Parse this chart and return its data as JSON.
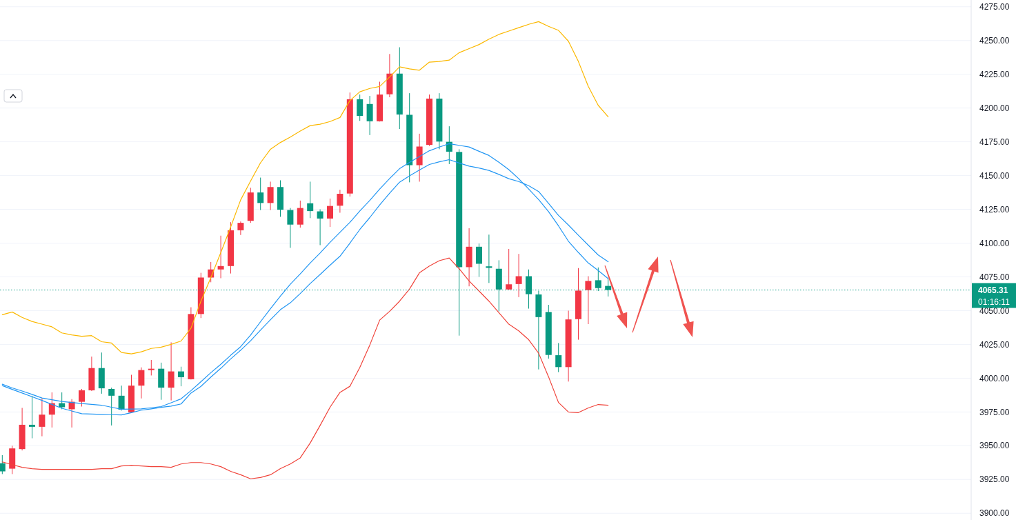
{
  "chart_data": {
    "type": "candlestick",
    "categories": [
      null,
      null,
      null,
      null,
      null,
      null,
      null,
      null,
      null,
      null,
      null,
      null,
      null,
      null,
      null,
      null,
      null,
      null,
      null,
      null,
      null,
      null,
      null,
      null,
      null,
      null,
      null,
      null,
      null,
      null,
      null,
      null,
      null,
      null,
      null,
      null,
      null,
      null,
      null,
      null,
      null,
      null,
      null,
      null,
      null,
      null,
      null,
      null,
      null,
      null,
      null,
      null,
      null,
      null,
      null,
      null,
      null,
      null,
      null,
      null,
      null,
      null
    ],
    "ohlc": [
      [
        3937,
        3943,
        3929,
        3931
      ],
      [
        3933,
        3950,
        3929,
        3948
      ],
      [
        3947.5,
        3978,
        3946.5,
        3965.5
      ],
      [
        3965.5,
        3987,
        3955.5,
        3964
      ],
      [
        3964,
        3985,
        3957,
        3973
      ],
      [
        3973,
        3989.5,
        3963.5,
        3981.5
      ],
      [
        3981.5,
        3989.5,
        3977,
        3978.5
      ],
      [
        3977,
        3984.5,
        3963.5,
        3982.5
      ],
      [
        3982.5,
        3992,
        3979,
        3991
      ],
      [
        3991,
        4016,
        3990.5,
        4007.5
      ],
      [
        4007.5,
        4019,
        3988.5,
        3992.5
      ],
      [
        3992,
        3993,
        3965,
        3987
      ],
      [
        3987,
        3994.5,
        3976,
        3976.7
      ],
      [
        3974.7,
        4002.5,
        3974.5,
        3994.5
      ],
      [
        3994.5,
        4008,
        3985,
        4006
      ],
      [
        4006,
        4013.5,
        4002,
        4007
      ],
      [
        4007,
        4011.5,
        3984,
        3993
      ],
      [
        3993,
        4026.5,
        3983.5,
        4005
      ],
      [
        4005,
        4008.5,
        3994,
        4000.7
      ],
      [
        3999.2,
        4052.5,
        3999,
        4047.5
      ],
      [
        4047.5,
        4078,
        4044.5,
        4074.5
      ],
      [
        4074.5,
        4086,
        4071,
        4080.5
      ],
      [
        4080.5,
        4105.5,
        4074,
        4083
      ],
      [
        4083,
        4115.5,
        4077.5,
        4109.5
      ],
      [
        4109.5,
        4116,
        4106,
        4115
      ],
      [
        4116.5,
        4141,
        4115,
        4137.5
      ],
      [
        4137.5,
        4148.5,
        4124.5,
        4129.7
      ],
      [
        4129.7,
        4145.5,
        4124.5,
        4141.5
      ],
      [
        4141.5,
        4146.5,
        4119.5,
        4124.7
      ],
      [
        4124.5,
        4126,
        4096.5,
        4113.7
      ],
      [
        4113.7,
        4131.5,
        4111.5,
        4126
      ],
      [
        4129.5,
        4145.5,
        4118.5,
        4123.7
      ],
      [
        4123.5,
        4125,
        4098.5,
        4118.2
      ],
      [
        4118.2,
        4133,
        4112,
        4127.5
      ],
      [
        4127.7,
        4139.5,
        4122.5,
        4136.5
      ],
      [
        4136.7,
        4211.5,
        4134.5,
        4206.5
      ],
      [
        4206.5,
        4210,
        4190.5,
        4194.2
      ],
      [
        4203,
        4209,
        4180,
        4190.2
      ],
      [
        4190.2,
        4219.5,
        4190,
        4210
      ],
      [
        4210.2,
        4240,
        4208,
        4225.5
      ],
      [
        4225.5,
        4245,
        4184.5,
        4195.2
      ],
      [
        4195,
        4211,
        4145,
        4157.7
      ],
      [
        4157.7,
        4181,
        4145.5,
        4171.5
      ],
      [
        4172.7,
        4210,
        4172,
        4207
      ],
      [
        4207,
        4211,
        4169.5,
        4175.2
      ],
      [
        4175,
        4186.5,
        4158.5,
        4167.7
      ],
      [
        4167.5,
        4169.5,
        4031.5,
        4082.2
      ],
      [
        4082.2,
        4111,
        4068,
        4097.3
      ],
      [
        4097.3,
        4099.7,
        4075,
        4084.7
      ],
      [
        4082.8,
        4106.3,
        4070.5,
        4081.7
      ],
      [
        4081,
        4087.3,
        4049.5,
        4065.7
      ],
      [
        4065.7,
        4095.7,
        4065.5,
        4069.5
      ],
      [
        4069.7,
        4092,
        4060,
        4075.5
      ],
      [
        4075.5,
        4080.5,
        4051.5,
        4062.2
      ],
      [
        4062,
        4064.7,
        4006.5,
        4045.2
      ],
      [
        4049,
        4054.3,
        4014.5,
        4017.2
      ],
      [
        4017,
        4026,
        4004.5,
        4008.2
      ],
      [
        4008.2,
        4050,
        3997.5,
        4043.5
      ],
      [
        4043.7,
        4081.5,
        4028.5,
        4064.8
      ],
      [
        4065.2,
        4075.5,
        4040,
        4072
      ],
      [
        4072.5,
        4082,
        4064.5,
        4066.7
      ],
      [
        4068.3,
        4073.7,
        4060.5,
        4065.31
      ]
    ],
    "colors": [
      "#089981",
      "#f23645",
      "#f23645",
      "#089981",
      "#f23645",
      "#f23645",
      "#089981",
      "#f23645",
      "#f23645",
      "#f23645",
      "#089981",
      "#089981",
      "#089981",
      "#f23645",
      "#f23645",
      "#f23645",
      "#089981",
      "#f23645",
      "#089981",
      "#f23645",
      "#f23645",
      "#f23645",
      "#f23645",
      "#f23645",
      "#f23645",
      "#f23645",
      "#089981",
      "#f23645",
      "#089981",
      "#089981",
      "#f23645",
      "#089981",
      "#089981",
      "#f23645",
      "#f23645",
      "#f23645",
      "#089981",
      "#089981",
      "#f23645",
      "#f23645",
      "#089981",
      "#089981",
      "#f23645",
      "#f23645",
      "#089981",
      "#089981",
      "#089981",
      "#f23645",
      "#089981",
      "#089981",
      "#089981",
      "#f23645",
      "#f23645",
      "#089981",
      "#089981",
      "#089981",
      "#089981",
      "#f23645",
      "#f23645",
      "#f23645",
      "#089981",
      "#089981"
    ],
    "series": [
      {
        "type": "line",
        "color": "#fbb800",
        "values": [
          4047,
          4049,
          4045,
          4042,
          4040,
          4038,
          4033.5,
          4032,
          4031,
          4031.5,
          4027,
          4026,
          4019,
          4018,
          4019.5,
          4022,
          4023,
          4025,
          4027.5,
          4037,
          4057,
          4074.5,
          4093,
          4112,
          4132,
          4146,
          4159.5,
          4169.5,
          4174.5,
          4178.5,
          4183,
          4187,
          4188,
          4190,
          4193,
          4205.5,
          4212,
          4214.5,
          4216,
          4223,
          4230.5,
          4229,
          4228,
          4234,
          4234.5,
          4235.5,
          4241,
          4244,
          4247,
          4251,
          4254.5,
          4257,
          4259.5,
          4262,
          4264,
          4260.5,
          4257.5,
          4249.5,
          4234.5,
          4216,
          4202,
          4193.5
        ]
      },
      {
        "type": "line",
        "color": "#2196f3",
        "values": [
          3995.5,
          3992.8,
          3990.5,
          3988,
          3985.3,
          3984,
          3982.8,
          3982,
          3981.2,
          3980.6,
          3980,
          3978.5,
          3977,
          3977.1,
          3977.3,
          3978.1,
          3979,
          3981.8,
          3984.7,
          3990.8,
          3997.4,
          4004.1,
          4010.3,
          4017,
          4023.3,
          4031.9,
          4041.8,
          4051.4,
          4060.7,
          4069.6,
          4077.2,
          4085.3,
          4092.7,
          4100.6,
          4108,
          4115.4,
          4123.8,
          4131.6,
          4140,
          4147.8,
          4155.1,
          4159.8,
          4164.1,
          4168.4,
          4171.1,
          4173.6,
          4172.4,
          4171.2,
          4168,
          4164.9,
          4159.9,
          4154.4,
          4147.7,
          4140,
          4132.2,
          4123.3,
          4112.8,
          4101.4,
          4093.1,
          4085.3,
          4079.7,
          4073.7
        ]
      },
      {
        "type": "line",
        "color": "#2196f3",
        "values": [
          3994.5,
          3991.7,
          3989,
          3986.3,
          3983.5,
          3980.6,
          3977.7,
          3975.7,
          3973.7,
          3973.4,
          3973.2,
          3973,
          3972.8,
          3974.5,
          3976.3,
          3977.3,
          3978.4,
          3979.3,
          3980.9,
          3989,
          3993.9,
          4000.8,
          4007.3,
          4014.3,
          4020.7,
          4027.7,
          4035.6,
          4043.3,
          4050.7,
          4055.8,
          4062.7,
          4070.1,
          4076.8,
          4083.7,
          4090.3,
          4100,
          4110.1,
          4118.9,
          4128.3,
          4137,
          4145.1,
          4149.8,
          4154.1,
          4158.2,
          4160.2,
          4161.8,
          4159.3,
          4157,
          4155.6,
          4153.8,
          4150.9,
          4147.7,
          4145.6,
          4142.5,
          4138.2,
          4129.4,
          4120.5,
          4113.4,
          4105.8,
          4098.5,
          4091.2,
          4086.2
        ]
      },
      {
        "type": "line",
        "color": "#f0433a",
        "values": [
          3938,
          3936,
          3934,
          3933,
          3932.5,
          3932.5,
          3932.5,
          3932.5,
          3932.5,
          3932.5,
          3933,
          3933,
          3935,
          3935.5,
          3935,
          3934.5,
          3934.5,
          3934,
          3936.5,
          3937.5,
          3937.5,
          3936.5,
          3934.5,
          3931,
          3928.5,
          3925.5,
          3926.5,
          3928.5,
          3933,
          3936.5,
          3941,
          3952,
          3965,
          3978.5,
          3989.5,
          3994,
          4008,
          4024.5,
          4043,
          4049.5,
          4057,
          4066,
          4078,
          4083,
          4087,
          4089,
          4081,
          4072,
          4064.5,
          4057,
          4048.5,
          4040,
          4035,
          4028.5,
          4018.5,
          4001,
          3982,
          3975,
          3974.5,
          3978,
          3980.5,
          3980
        ]
      }
    ],
    "ylim": [
      3895,
      4280
    ],
    "yticks": [
      {
        "value": 3900,
        "label": "3900.00"
      },
      {
        "value": 3925,
        "label": "3925.00"
      },
      {
        "value": 3950,
        "label": "3950.00"
      },
      {
        "value": 3975,
        "label": "3975.00"
      },
      {
        "value": 4000,
        "label": "4000.00"
      },
      {
        "value": 4025,
        "label": "4025.00"
      },
      {
        "value": 4050,
        "label": "4050.00"
      },
      {
        "value": 4075,
        "label": "4075.00"
      },
      {
        "value": 4100,
        "label": "4100.00"
      },
      {
        "value": 4125,
        "label": "4125.00"
      },
      {
        "value": 4150,
        "label": "4150.00"
      },
      {
        "value": 4175,
        "label": "4175.00"
      },
      {
        "value": 4200,
        "label": "4200.00"
      },
      {
        "value": 4225,
        "label": "4225.00"
      },
      {
        "value": 4250,
        "label": "4250.00"
      },
      {
        "value": 4275,
        "label": "4275.00"
      }
    ],
    "grid": "y",
    "ref_lines": [
      {
        "axis": "y",
        "value": 4065.31,
        "label": "4065.31",
        "color": "#089981",
        "line_style": "dotted"
      }
    ],
    "annotations": [
      "01:16:11"
    ]
  }
}
